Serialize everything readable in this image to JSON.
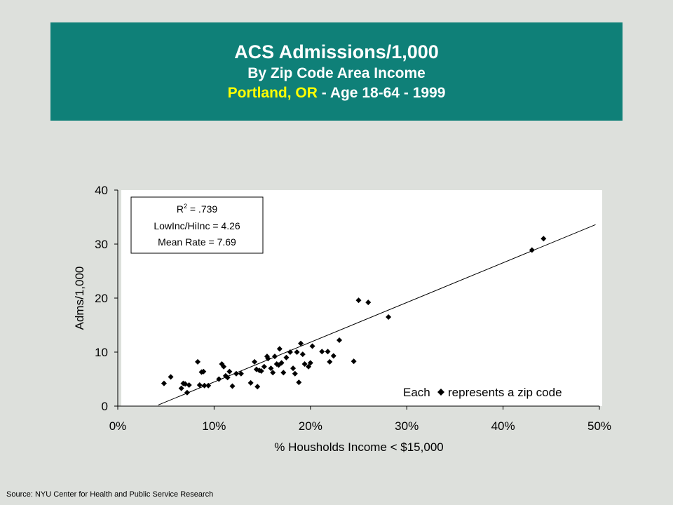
{
  "header": {
    "title": "ACS Admissions/1,000",
    "subtitle": "By Zip Code Area Income",
    "location": "Portland, OR",
    "separator": " -  ",
    "detail": "Age 18-64 - 1999"
  },
  "stats": {
    "r2_label": "R",
    "r2_sup": "2",
    "r2_value": " = .739",
    "ratio": "LowInc/HiInc = 4.26",
    "mean": "Mean Rate = 7.69"
  },
  "legend_note": {
    "before": "Each",
    "after": "represents a zip code"
  },
  "source": "Source:  NYU Center for Health and Public Service Research",
  "colors": {
    "title_bg": "#0f8078",
    "highlight": "#ffff00",
    "page_bg": "#dde0dc",
    "plot_bg": "#ffffff",
    "marker": "#000000"
  },
  "chart_data": {
    "type": "scatter",
    "xlabel": "% Housholds Income < $15,000",
    "ylabel": "Adms/1,000",
    "xlim": [
      0,
      0.5
    ],
    "ylim": [
      0,
      40
    ],
    "x_ticks": [
      0,
      0.1,
      0.2,
      0.3,
      0.4,
      0.5
    ],
    "x_tick_labels": [
      "0%",
      "10%",
      "20%",
      "30%",
      "40%",
      "50%"
    ],
    "y_ticks": [
      0,
      10,
      20,
      30,
      40
    ],
    "y_tick_labels": [
      "0",
      "10",
      "20",
      "30",
      "40"
    ],
    "grid": false,
    "marker": "diamond",
    "trendline": {
      "x": [
        0.042,
        0.496
      ],
      "y": [
        0.2,
        33.6
      ]
    },
    "points": [
      [
        0.048,
        4.2
      ],
      [
        0.055,
        5.4
      ],
      [
        0.066,
        3.3
      ],
      [
        0.068,
        4.2
      ],
      [
        0.07,
        4.1
      ],
      [
        0.072,
        2.5
      ],
      [
        0.074,
        3.9
      ],
      [
        0.083,
        8.2
      ],
      [
        0.085,
        3.9
      ],
      [
        0.087,
        6.3
      ],
      [
        0.089,
        6.4
      ],
      [
        0.09,
        3.8
      ],
      [
        0.094,
        3.8
      ],
      [
        0.105,
        5.0
      ],
      [
        0.108,
        7.8
      ],
      [
        0.11,
        7.3
      ],
      [
        0.112,
        5.6
      ],
      [
        0.114,
        5.3
      ],
      [
        0.116,
        6.4
      ],
      [
        0.119,
        3.7
      ],
      [
        0.123,
        6.0
      ],
      [
        0.128,
        6.0
      ],
      [
        0.138,
        4.3
      ],
      [
        0.142,
        8.2
      ],
      [
        0.144,
        6.8
      ],
      [
        0.145,
        3.6
      ],
      [
        0.147,
        6.6
      ],
      [
        0.149,
        6.5
      ],
      [
        0.152,
        7.3
      ],
      [
        0.155,
        9.2
      ],
      [
        0.156,
        8.8
      ],
      [
        0.159,
        7.0
      ],
      [
        0.161,
        6.2
      ],
      [
        0.163,
        9.2
      ],
      [
        0.165,
        7.8
      ],
      [
        0.167,
        7.6
      ],
      [
        0.168,
        10.6
      ],
      [
        0.17,
        8.0
      ],
      [
        0.172,
        6.2
      ],
      [
        0.175,
        9.0
      ],
      [
        0.179,
        10.0
      ],
      [
        0.182,
        7.0
      ],
      [
        0.184,
        6.0
      ],
      [
        0.186,
        10.0
      ],
      [
        0.188,
        4.4
      ],
      [
        0.19,
        11.6
      ],
      [
        0.192,
        9.6
      ],
      [
        0.194,
        7.8
      ],
      [
        0.198,
        7.3
      ],
      [
        0.2,
        8.0
      ],
      [
        0.202,
        11.1
      ],
      [
        0.212,
        10.1
      ],
      [
        0.218,
        10.1
      ],
      [
        0.22,
        8.2
      ],
      [
        0.224,
        9.3
      ],
      [
        0.23,
        12.2
      ],
      [
        0.245,
        8.3
      ],
      [
        0.25,
        19.6
      ],
      [
        0.26,
        19.2
      ],
      [
        0.281,
        16.5
      ],
      [
        0.43,
        28.9
      ],
      [
        0.442,
        31.0
      ]
    ]
  }
}
